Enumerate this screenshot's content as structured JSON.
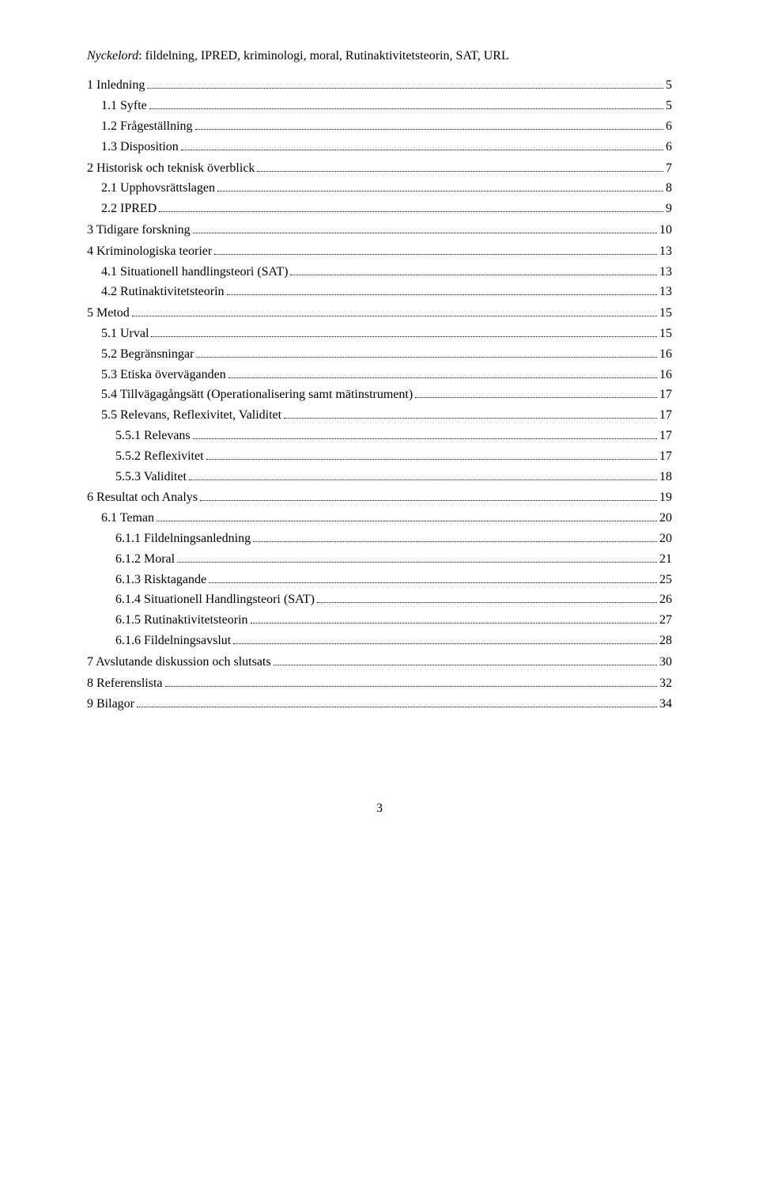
{
  "keywords": {
    "label": "Nyckelord",
    "value": "fildelning, IPRED, kriminologi, moral, Rutinaktivitetsteorin, SAT, URL"
  },
  "toc": [
    {
      "level": 1,
      "label": "1 Inledning",
      "page": "5"
    },
    {
      "level": 2,
      "label": "1.1 Syfte",
      "page": "5"
    },
    {
      "level": 2,
      "label": "1.2 Frågeställning",
      "page": "6"
    },
    {
      "level": 2,
      "label": "1.3 Disposition",
      "page": "6"
    },
    {
      "level": 1,
      "label": "2 Historisk och teknisk överblick",
      "page": "7"
    },
    {
      "level": 2,
      "label": "2.1 Upphovsrättslagen",
      "page": "8"
    },
    {
      "level": 2,
      "label": "2.2 IPRED",
      "page": "9"
    },
    {
      "level": 1,
      "label": "3 Tidigare forskning",
      "page": "10"
    },
    {
      "level": 1,
      "label": "4 Kriminologiska teorier",
      "page": "13"
    },
    {
      "level": 2,
      "label": "4.1 Situationell handlingsteori (SAT)",
      "page": "13"
    },
    {
      "level": 2,
      "label": "4.2 Rutinaktivitetsteorin",
      "page": "13"
    },
    {
      "level": 1,
      "label": "5 Metod",
      "page": "15"
    },
    {
      "level": 2,
      "label": "5.1 Urval",
      "page": "15"
    },
    {
      "level": 2,
      "label": "5.2 Begränsningar",
      "page": "16"
    },
    {
      "level": 2,
      "label": "5.3 Etiska överväganden",
      "page": "16"
    },
    {
      "level": 2,
      "label": "5.4 Tillvägagångsätt (Operationalisering samt mätinstrument)",
      "page": "17"
    },
    {
      "level": 2,
      "label": "5.5 Relevans, Reflexivitet, Validitet",
      "page": "17"
    },
    {
      "level": 3,
      "label": "5.5.1 Relevans",
      "page": "17"
    },
    {
      "level": 3,
      "label": "5.5.2 Reflexivitet",
      "page": "17"
    },
    {
      "level": 3,
      "label": "5.5.3 Validitet",
      "page": "18"
    },
    {
      "level": 1,
      "label": "6 Resultat och Analys",
      "page": "19"
    },
    {
      "level": 2,
      "label": "6.1 Teman",
      "page": "20"
    },
    {
      "level": 3,
      "label": "6.1.1 Fildelningsanledning",
      "page": "20"
    },
    {
      "level": 3,
      "label": "6.1.2 Moral",
      "page": "21"
    },
    {
      "level": 3,
      "label": "6.1.3 Risktagande",
      "page": "25"
    },
    {
      "level": 3,
      "label": "6.1.4 Situationell Handlingsteori (SAT)",
      "page": "26"
    },
    {
      "level": 3,
      "label": "6.1.5 Rutinaktivitetsteorin",
      "page": "27"
    },
    {
      "level": 3,
      "label": "6.1.6 Fildelningsavslut",
      "page": "28"
    },
    {
      "level": 1,
      "label": "7 Avslutande diskussion och slutsats",
      "page": "30"
    },
    {
      "level": 1,
      "label": "8 Referenslista",
      "page": "32"
    },
    {
      "level": 1,
      "label": "9 Bilagor",
      "page": "34"
    }
  ],
  "page_number": "3",
  "typography": {
    "font_family": "Times New Roman",
    "font_size_pt": 12,
    "text_color": "#000000",
    "background_color": "#ffffff"
  }
}
